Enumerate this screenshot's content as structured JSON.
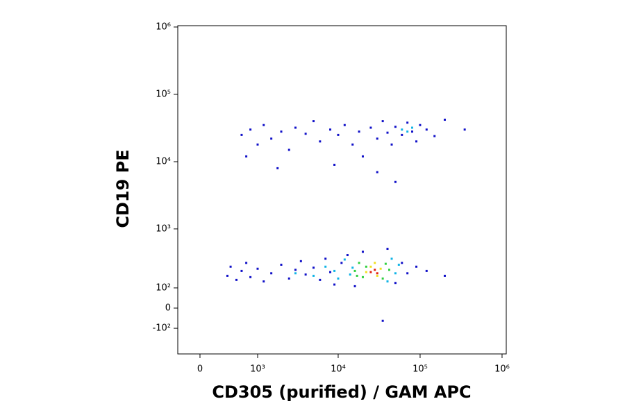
{
  "chart_data": {
    "type": "scatter",
    "x_label": "CD305 (purified) / GAM APC",
    "y_label": "CD19 PE",
    "xscale": "asinh",
    "yscale": "asinh",
    "xlim": [
      -274,
      1125000
    ],
    "ylim": [
      -307,
      1047000
    ],
    "xticks": [
      0,
      {
        "value": 1000,
        "label": "10³"
      },
      {
        "value": 10000,
        "label": "10⁴"
      },
      {
        "value": 100000,
        "label": "10⁵"
      },
      {
        "value": 1000000,
        "label": "10⁶"
      }
    ],
    "yticks": [
      {
        "value": -100,
        "label": "-10²"
      },
      0,
      {
        "value": 100,
        "label": "10²"
      },
      {
        "value": 1000,
        "label": "10³"
      },
      {
        "value": 10000,
        "label": "10⁴"
      },
      {
        "value": 100000,
        "label": "10⁵"
      },
      {
        "value": 1000000,
        "label": "10⁶"
      }
    ],
    "series": [
      {
        "color": "#1010c8",
        "x": [
          600,
          800,
          1000,
          1200,
          1500,
          2000,
          2500,
          3000,
          4000,
          5000,
          6000,
          8000,
          10000,
          12000,
          15000,
          18000,
          20000,
          25000,
          30000,
          35000,
          40000,
          45000,
          50000,
          60000,
          70000,
          80000,
          90000,
          100000,
          120000,
          150000,
          200000,
          350000,
          700,
          1800,
          9000,
          30000,
          50000,
          350,
          400,
          500,
          600,
          700,
          800,
          1000,
          1200,
          1500,
          2000,
          2500,
          3000,
          3500,
          4000,
          5000,
          6000,
          7000,
          8000,
          9000,
          11000,
          13000,
          16000,
          20000,
          40000,
          50000,
          60000,
          70000,
          90000,
          120000,
          200000,
          35000
        ],
        "y": [
          25000,
          30000,
          18000,
          35000,
          22000,
          28000,
          15000,
          32000,
          26000,
          40000,
          20000,
          30000,
          25000,
          35000,
          18000,
          28000,
          12000,
          32000,
          22000,
          40000,
          27000,
          18000,
          33000,
          25000,
          38000,
          28000,
          20000,
          35000,
          30000,
          24000,
          42000,
          30000,
          12000,
          8000,
          9000,
          7000,
          5000,
          180,
          260,
          150,
          220,
          300,
          170,
          240,
          140,
          200,
          280,
          160,
          230,
          320,
          190,
          250,
          150,
          350,
          210,
          120,
          300,
          400,
          110,
          450,
          500,
          130,
          300,
          200,
          260,
          220,
          180,
          -60
        ]
      },
      {
        "color": "#10b4e6",
        "x": [
          3000,
          5000,
          7000,
          9000,
          10000,
          12000,
          14000,
          45000,
          50000,
          40000,
          15000,
          55000,
          60000,
          70000,
          80000
        ],
        "y": [
          200,
          180,
          260,
          220,
          160,
          340,
          190,
          350,
          200,
          140,
          250,
          280,
          30000,
          28000,
          32000
        ]
      },
      {
        "color": "#30d040",
        "x": [
          16000,
          18000,
          20000,
          22000,
          35000,
          38000,
          42000,
          17000
        ],
        "y": [
          220,
          300,
          170,
          260,
          160,
          290,
          230,
          180
        ]
      },
      {
        "color": "#f0e020",
        "x": [
          22000,
          25000,
          30000,
          33000,
          28000
        ],
        "y": [
          210,
          260,
          180,
          240,
          300
        ]
      },
      {
        "color": "#e02010",
        "x": [
          25000,
          28000,
          30000
        ],
        "y": [
          210,
          230,
          200
        ]
      }
    ]
  }
}
